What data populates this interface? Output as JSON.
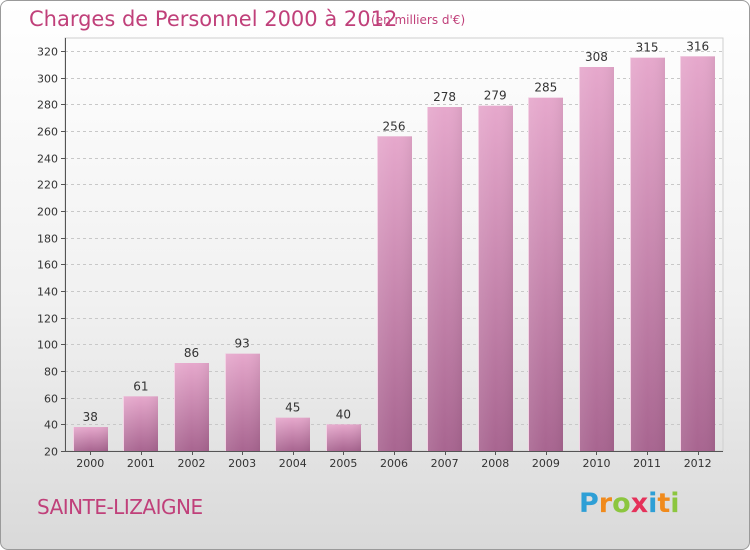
{
  "header": {
    "title": "Charges de Personnel 2000 à 2012",
    "unit": "(en milliers d'€)"
  },
  "footer": {
    "place": "SAINTE-LIZAIGNE",
    "logo_letters": [
      "P",
      "r",
      "o",
      "x",
      "i",
      "t",
      "i"
    ],
    "logo_colors": [
      "#2e9fd6",
      "#f08a1c",
      "#8cc63f",
      "#e5315a",
      "#2e9fd6",
      "#f08a1c",
      "#8cc63f"
    ]
  },
  "chart_data": {
    "type": "bar",
    "title": "Charges de Personnel 2000 à 2012",
    "subtitle": "(en milliers d'€)",
    "categories": [
      "2000",
      "2001",
      "2002",
      "2003",
      "2004",
      "2005",
      "2006",
      "2007",
      "2008",
      "2009",
      "2010",
      "2011",
      "2012"
    ],
    "values": [
      38,
      61,
      86,
      93,
      45,
      40,
      256,
      278,
      279,
      285,
      308,
      315,
      316
    ],
    "data_labels": [
      "38",
      "61",
      "86",
      "93",
      "45",
      "40",
      "256",
      "278",
      "279",
      "285",
      "308",
      "315",
      "316"
    ],
    "y_ticks": [
      "20",
      "40",
      "60",
      "80",
      "100",
      "120",
      "140",
      "160",
      "180",
      "200",
      "220",
      "240",
      "260",
      "280",
      "300",
      "320"
    ],
    "ylim": [
      20,
      320
    ],
    "xlabel": "",
    "ylabel": "",
    "grid": true,
    "bar_color": "#c9709f"
  }
}
